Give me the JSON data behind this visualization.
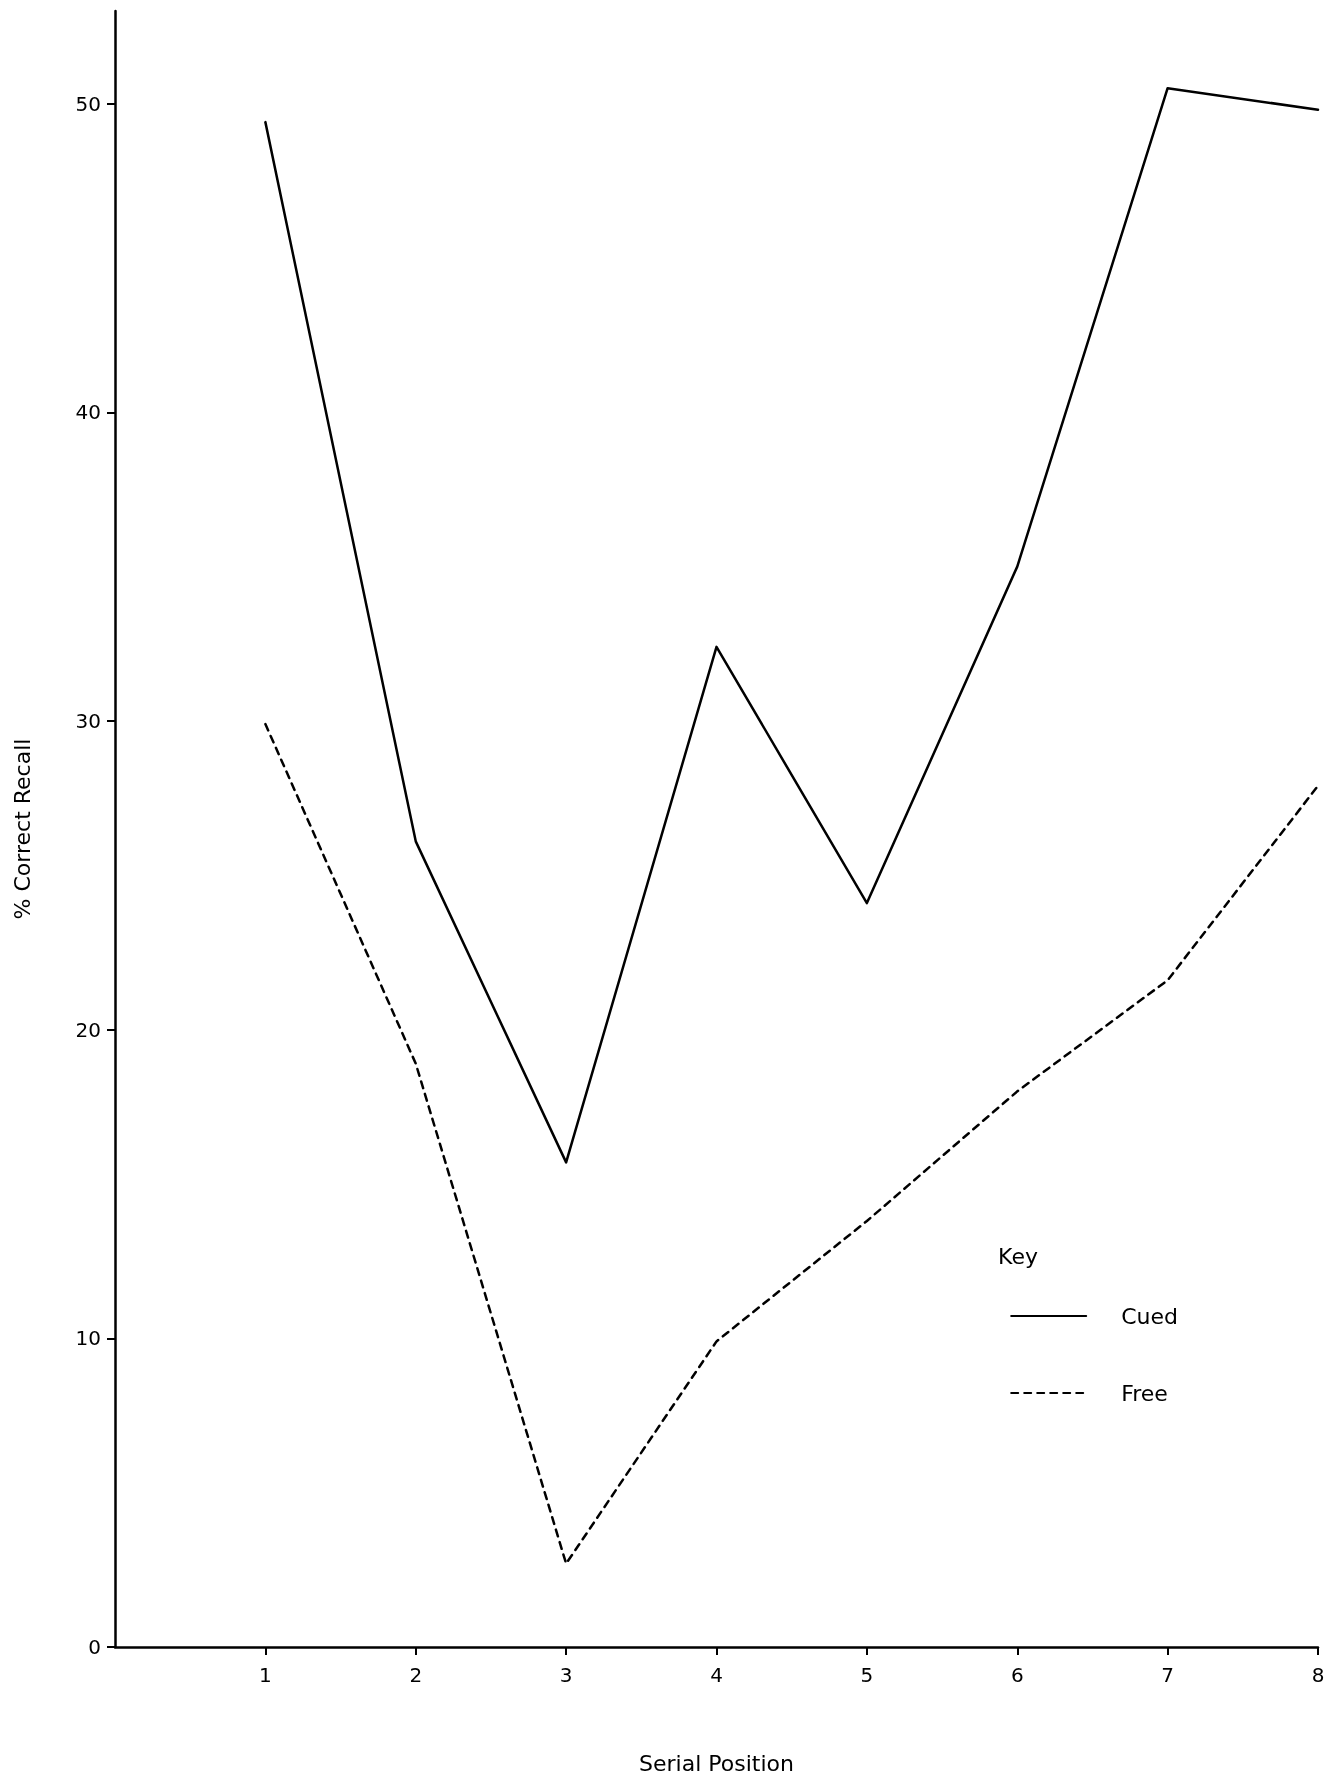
{
  "chart_data": {
    "type": "line",
    "xlabel": "Serial Position",
    "ylabel": "% Correct Recall",
    "legend_title": "Key",
    "x": [
      1,
      2,
      3,
      4,
      5,
      6,
      7,
      8
    ],
    "xlim": [
      0,
      8
    ],
    "xticks": [
      1,
      2,
      3,
      4,
      5,
      6,
      7,
      8
    ],
    "ylim": [
      0,
      53
    ],
    "yticks": [
      0,
      10,
      20,
      30,
      40,
      50
    ],
    "grid": false,
    "legend": "right",
    "marker": "none",
    "series": [
      {
        "name": "Cued",
        "color": "#000000",
        "line_style": "solid",
        "values": [
          49.4,
          26.1,
          15.7,
          32.4,
          24.1,
          35.0,
          50.5,
          49.8
        ]
      },
      {
        "name": "Free",
        "color": "#000000",
        "line_style": "dashed",
        "values": [
          29.9,
          18.9,
          2.7,
          9.9,
          13.8,
          18.0,
          21.6,
          27.9
        ]
      }
    ]
  }
}
